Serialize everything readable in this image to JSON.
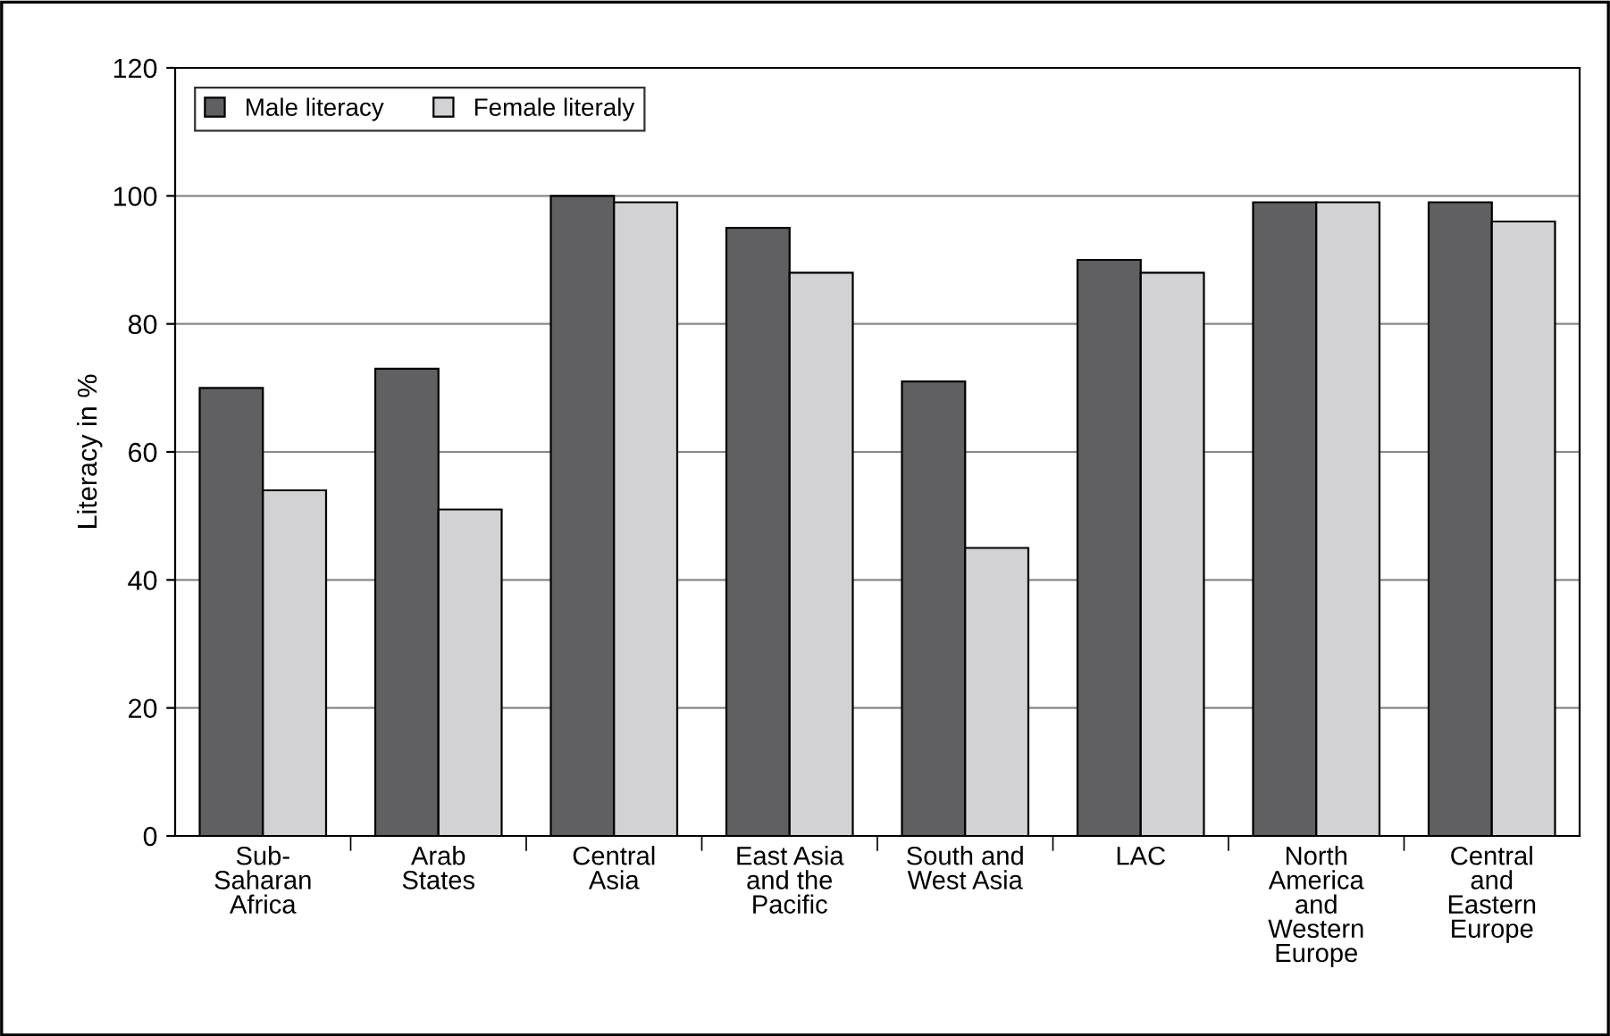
{
  "chart_data": {
    "type": "bar",
    "ylabel": "Literacy in %",
    "categories": [
      "Sub-\nSaharan\nAfrica",
      "Arab\nStates",
      "Central\nAsia",
      "East Asia\nand the\nPacific",
      "South and\nWest Asia",
      "LAC",
      "North\nAmerica\nand\nWestern\nEurope",
      "Central\nand\nEastern\nEurope"
    ],
    "series": [
      {
        "name": "Male literacy",
        "color": "#606062",
        "values": [
          70,
          73,
          100,
          95,
          71,
          90,
          99,
          99
        ]
      },
      {
        "name": "Female literaly",
        "color": "#d2d2d4",
        "values": [
          54,
          51,
          99,
          88,
          45,
          88,
          99,
          96
        ]
      }
    ],
    "ylim": [
      0,
      120
    ],
    "yticks": [
      0,
      20,
      40,
      60,
      80,
      100,
      120
    ],
    "grid": "y",
    "legend": "top left"
  }
}
